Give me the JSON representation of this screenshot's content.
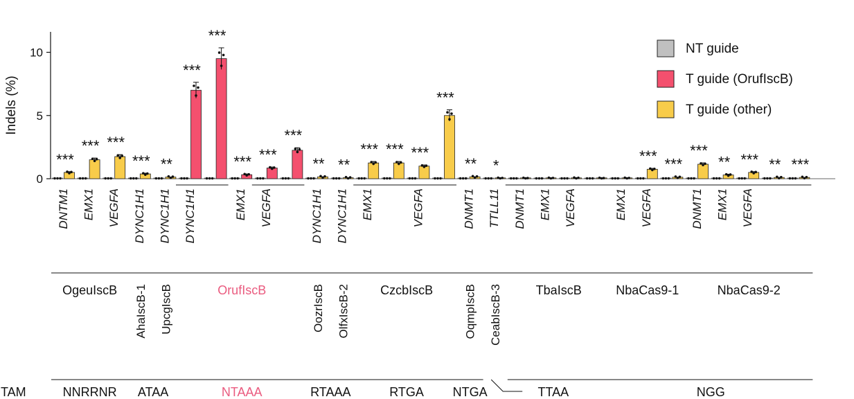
{
  "chart_data": {
    "type": "bar",
    "ylabel": "Indels (%)",
    "ylim": [
      0,
      11.5
    ],
    "yticks": [
      0,
      5,
      10
    ],
    "colors": {
      "nt": "#c0c0c0",
      "orufi": "#f4506e",
      "other": "#f8cc4a",
      "orufi_text": "#ea5b7f"
    },
    "legend": [
      {
        "label": "NT guide",
        "color": "#c0c0c0"
      },
      {
        "label": "T guide (OrufIscB)",
        "color": "#f4506e"
      },
      {
        "label": "T guide (other)",
        "color": "#f8cc4a"
      }
    ],
    "bars": [
      {
        "gene": "DNTM1",
        "nt": 0,
        "t": 0.5,
        "kind": "other",
        "sig": "***"
      },
      {
        "gene": "EMX1",
        "nt": 0,
        "t": 1.5,
        "kind": "other",
        "sig": "***"
      },
      {
        "gene": "VEGFA",
        "nt": 0,
        "t": 1.75,
        "kind": "other",
        "sig": "***"
      },
      {
        "gene": "DYNC1H1",
        "nt": 0,
        "t": 0.38,
        "kind": "other",
        "sig": "***"
      },
      {
        "gene": "DYNC1H1",
        "nt": 0,
        "t": 0.13,
        "kind": "other",
        "sig": "**"
      },
      {
        "gene": "DYNC1H1",
        "nt": 0,
        "t": 7.0,
        "kind": "orufi",
        "sig": "***"
      },
      {
        "gene": "",
        "nt": 0,
        "t": 9.5,
        "kind": "orufi",
        "sig": "***"
      },
      {
        "gene": "EMX1",
        "nt": 0,
        "t": 0.32,
        "kind": "orufi",
        "sig": "***"
      },
      {
        "gene": "VEGFA",
        "nt": 0,
        "t": 0.85,
        "kind": "orufi",
        "sig": "***"
      },
      {
        "gene": "",
        "nt": 0,
        "t": 2.25,
        "kind": "orufi",
        "sig": "***"
      },
      {
        "gene": "DYNC1H1",
        "nt": 0,
        "t": 0.15,
        "kind": "other",
        "sig": "**"
      },
      {
        "gene": "DYNC1H1",
        "nt": 0,
        "t": 0.08,
        "kind": "other",
        "sig": "**"
      },
      {
        "gene": "EMX1",
        "nt": 0,
        "t": 1.25,
        "kind": "other",
        "sig": "***"
      },
      {
        "gene": "",
        "nt": 0,
        "t": 1.25,
        "kind": "other",
        "sig": "***"
      },
      {
        "gene": "VEGFA",
        "nt": 0,
        "t": 1.0,
        "kind": "other",
        "sig": "***"
      },
      {
        "gene": "",
        "nt": 0,
        "t": 5.0,
        "kind": "other",
        "sig": "***"
      },
      {
        "gene": "DNMT1",
        "nt": 0,
        "t": 0.15,
        "kind": "other",
        "sig": "**"
      },
      {
        "gene": "TTLL11",
        "nt": 0,
        "t": 0.03,
        "kind": "other",
        "sig": "*"
      },
      {
        "gene": "DNMT1",
        "nt": 0,
        "t": 0.02,
        "kind": "other",
        "sig": ""
      },
      {
        "gene": "EMX1",
        "nt": 0,
        "t": 0.03,
        "kind": "other",
        "sig": ""
      },
      {
        "gene": "VEGFA",
        "nt": 0,
        "t": 0.04,
        "kind": "other",
        "sig": ""
      },
      {
        "gene": "",
        "nt": 0,
        "t": 0.02,
        "kind": "other",
        "sig": ""
      },
      {
        "gene": "EMX1",
        "nt": 0,
        "t": 0.03,
        "kind": "other",
        "sig": ""
      },
      {
        "gene": "VEGFA",
        "nt": 0,
        "t": 0.75,
        "kind": "other",
        "sig": "***"
      },
      {
        "gene": "",
        "nt": 0,
        "t": 0.12,
        "kind": "other",
        "sig": "***"
      },
      {
        "gene": "DNMT1",
        "nt": 0,
        "t": 1.15,
        "kind": "other",
        "sig": "***"
      },
      {
        "gene": "EMX1",
        "nt": 0,
        "t": 0.3,
        "kind": "other",
        "sig": "**"
      },
      {
        "gene": "VEGFA",
        "nt": 0,
        "t": 0.5,
        "kind": "other",
        "sig": "***"
      },
      {
        "gene": "",
        "nt": 0,
        "t": 0.1,
        "kind": "other",
        "sig": "**"
      },
      {
        "gene": "",
        "nt": 0,
        "t": 0.1,
        "kind": "other",
        "sig": "***"
      }
    ],
    "orthologs": [
      {
        "name": "OgeuIscB",
        "from": 0,
        "to": 2,
        "vertical": false,
        "highlight": false
      },
      {
        "name": "AhaIscB-1",
        "from": 3,
        "to": 3,
        "vertical": true,
        "highlight": false
      },
      {
        "name": "UpcgIscB",
        "from": 4,
        "to": 4,
        "vertical": true,
        "highlight": false
      },
      {
        "name": "OrufIscB",
        "from": 5,
        "to": 9,
        "vertical": false,
        "highlight": true
      },
      {
        "name": "OozrIscB",
        "from": 10,
        "to": 10,
        "vertical": true,
        "highlight": false
      },
      {
        "name": "OlfxIscB-2",
        "from": 11,
        "to": 11,
        "vertical": true,
        "highlight": false
      },
      {
        "name": "CzcbIscB",
        "from": 12,
        "to": 15,
        "vertical": false,
        "highlight": false
      },
      {
        "name": "OqmpIscB",
        "from": 16,
        "to": 16,
        "vertical": true,
        "highlight": false
      },
      {
        "name": "CeabIscB-3",
        "from": 17,
        "to": 17,
        "vertical": true,
        "highlight": false
      },
      {
        "name": "TbaIscB",
        "from": 18,
        "to": 21,
        "vertical": false,
        "highlight": false
      },
      {
        "name": "NbaCas9-1",
        "from": 22,
        "to": 24,
        "vertical": false,
        "highlight": false
      },
      {
        "name": "NbaCas9-2",
        "from": 25,
        "to": 29,
        "vertical": false,
        "highlight": false
      }
    ],
    "tam_label": "TAM",
    "tams": [
      {
        "label": "NNRRNR",
        "from": 0,
        "to": 2,
        "highlight": false
      },
      {
        "label": "ATAA",
        "from": 3,
        "to": 4,
        "highlight": false
      },
      {
        "label": "NTAAA",
        "from": 5,
        "to": 9,
        "highlight": true
      },
      {
        "label": "RTAAA",
        "from": 10,
        "to": 11,
        "highlight": false
      },
      {
        "label": "RTGA",
        "from": 12,
        "to": 15,
        "highlight": false
      },
      {
        "label": "NTGA",
        "from": 16,
        "to": 16,
        "highlight": false
      },
      {
        "label": "TTAA",
        "from": 17,
        "to": 21,
        "highlight": false
      },
      {
        "label": "NGG",
        "from": 22,
        "to": 29,
        "highlight": false
      }
    ]
  }
}
